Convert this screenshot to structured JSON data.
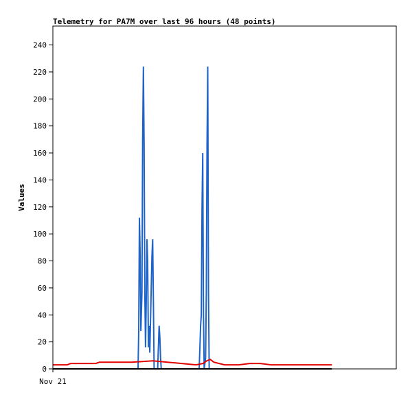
{
  "chart_data": {
    "type": "line",
    "title": "Telemetry for PA7M over last 96 hours (48 points)",
    "xlabel": "",
    "ylabel": "Values",
    "xlim": [
      0,
      96
    ],
    "ylim": [
      0,
      254
    ],
    "y_ticks": [
      0,
      20,
      40,
      60,
      80,
      100,
      120,
      140,
      160,
      180,
      200,
      220,
      240
    ],
    "x_ticks": [
      {
        "x": 0,
        "label": "Nov 21"
      }
    ],
    "grid": false,
    "legend": "none",
    "series": [
      {
        "color": "#1e64c8",
        "points": [
          [
            23.8,
            0
          ],
          [
            24.0,
            28
          ],
          [
            24.2,
            112
          ],
          [
            24.4,
            84
          ],
          [
            24.6,
            28
          ],
          [
            24.9,
            56
          ],
          [
            25.1,
            168
          ],
          [
            25.3,
            224
          ],
          [
            25.5,
            168
          ],
          [
            25.7,
            56
          ],
          [
            25.9,
            16
          ],
          [
            26.1,
            48
          ],
          [
            26.3,
            96
          ],
          [
            26.5,
            80
          ],
          [
            26.7,
            16
          ],
          [
            26.9,
            32
          ],
          [
            27.1,
            12
          ],
          [
            27.3,
            36
          ],
          [
            27.5,
            60
          ],
          [
            27.7,
            84
          ],
          [
            27.9,
            96
          ],
          [
            28.1,
            48
          ],
          [
            28.3,
            0
          ],
          [
            28.9,
            0
          ],
          [
            29.3,
            0
          ],
          [
            29.5,
            16
          ],
          [
            29.7,
            32
          ],
          [
            29.9,
            24
          ],
          [
            30.1,
            8
          ],
          [
            30.3,
            0
          ],
          [
            40.9,
            0
          ],
          [
            41.1,
            16
          ],
          [
            41.3,
            32
          ],
          [
            41.5,
            40
          ],
          [
            41.7,
            120
          ],
          [
            41.9,
            160
          ],
          [
            42.1,
            40
          ],
          [
            42.3,
            0
          ],
          [
            42.7,
            8
          ],
          [
            42.9,
            56
          ],
          [
            43.1,
            168
          ],
          [
            43.3,
            224
          ],
          [
            43.5,
            56
          ],
          [
            43.7,
            0
          ]
        ]
      },
      {
        "color": "#e00000",
        "points": [
          [
            0,
            3
          ],
          [
            4,
            3
          ],
          [
            5,
            4
          ],
          [
            8,
            4
          ],
          [
            12,
            4
          ],
          [
            13,
            5
          ],
          [
            18,
            5
          ],
          [
            22,
            5
          ],
          [
            28,
            6
          ],
          [
            32,
            5
          ],
          [
            36,
            4
          ],
          [
            40,
            3
          ],
          [
            42,
            4
          ],
          [
            43,
            6
          ],
          [
            44,
            7
          ],
          [
            45,
            5
          ],
          [
            48,
            3
          ],
          [
            52,
            3
          ],
          [
            55,
            4
          ],
          [
            58,
            4
          ],
          [
            61,
            3
          ],
          [
            66,
            3
          ],
          [
            72,
            3
          ],
          [
            78,
            3
          ]
        ]
      },
      {
        "color": "#000000",
        "points": [
          [
            0,
            0
          ],
          [
            78,
            0
          ]
        ]
      }
    ]
  }
}
